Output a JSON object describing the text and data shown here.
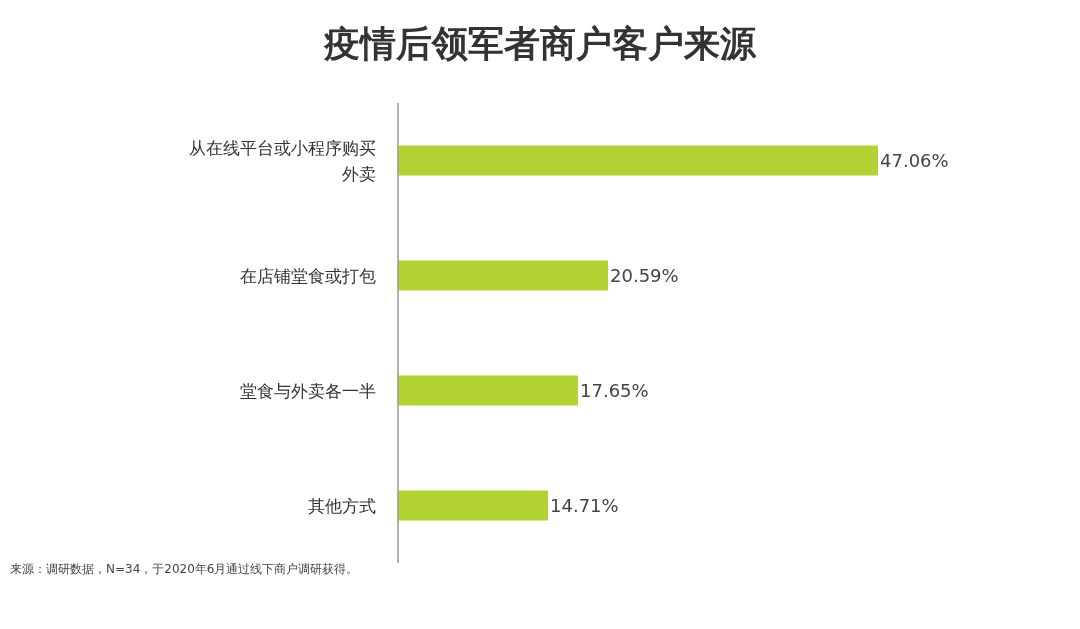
{
  "chart_data": {
    "type": "bar",
    "orientation": "horizontal",
    "title": "疫情后领军者商户客户来源",
    "categories": [
      "从在线平台或小程序购买外卖",
      "在店铺堂食或打包",
      "堂食与外卖各一半",
      "其他方式"
    ],
    "values": [
      47.06,
      20.59,
      17.65,
      14.71
    ],
    "value_labels": [
      "47.06%",
      "20.59%",
      "17.65%",
      "14.71%"
    ],
    "color": "#b3d334",
    "annotations": [
      "来源：调研数据，N=34，于2020年6月通过线下商户调研获得。"
    ]
  }
}
